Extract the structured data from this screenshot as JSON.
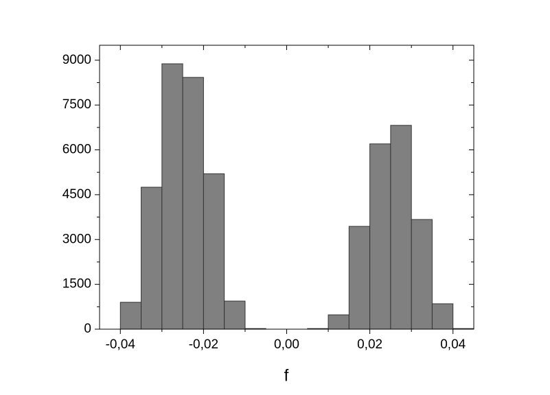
{
  "chart_data": {
    "type": "histogram",
    "x_label": "f",
    "bins": [
      -0.04,
      -0.035,
      -0.03,
      -0.025,
      -0.02,
      -0.015,
      -0.01,
      -0.005,
      0,
      0.005,
      0.01,
      0.015,
      0.02,
      0.025,
      0.03,
      0.035,
      0.04,
      0.045
    ],
    "values": [
      900,
      4750,
      8880,
      8425,
      5200,
      940,
      20,
      0,
      0,
      20,
      480,
      3440,
      6200,
      6820,
      3670,
      850,
      20
    ],
    "color": "#808080",
    "xlim": [
      -0.045,
      0.045
    ],
    "xticks": [
      {
        "value": -0.04,
        "label": "-0,04"
      },
      {
        "value": -0.02,
        "label": "-0,02"
      },
      {
        "value": 0,
        "label": "0,00"
      },
      {
        "value": 0.02,
        "label": "0,02"
      },
      {
        "value": 0.04,
        "label": "0,04"
      }
    ],
    "ylim": [
      0,
      9500
    ],
    "yticks": [
      0,
      1500,
      3000,
      4500,
      6000,
      7500,
      9000
    ],
    "grid": false
  }
}
